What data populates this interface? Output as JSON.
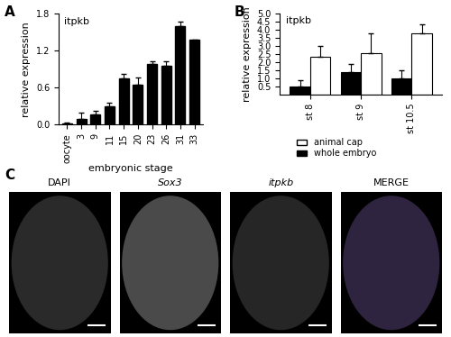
{
  "panel_labels": [
    "A",
    "B",
    "C"
  ],
  "chart_data": [
    {
      "type": "bar",
      "title": "itpkb",
      "xlabel": "embryonic stage",
      "ylabel": "relative expression",
      "categories": [
        "oocyte",
        "3",
        "9",
        "11",
        "15",
        "20",
        "23",
        "26",
        "31",
        "33"
      ],
      "values": [
        0.02,
        0.1,
        0.16,
        0.3,
        0.75,
        0.65,
        0.98,
        0.95,
        1.6,
        1.37
      ],
      "errors": [
        0.01,
        0.1,
        0.06,
        0.05,
        0.07,
        0.12,
        0.05,
        0.07,
        0.07,
        null
      ],
      "color": "#000000",
      "ylim": [
        0.0,
        1.8
      ],
      "yticks": [
        0.0,
        0.6,
        1.2,
        1.8
      ]
    },
    {
      "type": "bar",
      "title": "itpkb",
      "ylabel": "relative expression",
      "categories": [
        "st 8",
        "st 9",
        "st 10.5"
      ],
      "series": [
        {
          "name": "whole embryo",
          "color": "#000000",
          "values": [
            0.5,
            1.35,
            1.0
          ],
          "errors": [
            0.35,
            0.55,
            0.5
          ]
        },
        {
          "name": "animal cap",
          "color": "#ffffff",
          "values": [
            2.3,
            2.55,
            3.8
          ],
          "errors": [
            0.7,
            1.2,
            0.55
          ]
        }
      ],
      "legend": "upper center",
      "ylim": [
        0.0,
        5.0
      ],
      "yticks": [
        0.5,
        1.0,
        1.5,
        2.0,
        2.5,
        3.0,
        3.5,
        4.0,
        4.5,
        5.0
      ]
    }
  ],
  "images": {
    "type": "image",
    "titles": [
      "DAPI",
      "Sox3",
      "itpkb",
      "MERGE"
    ]
  }
}
